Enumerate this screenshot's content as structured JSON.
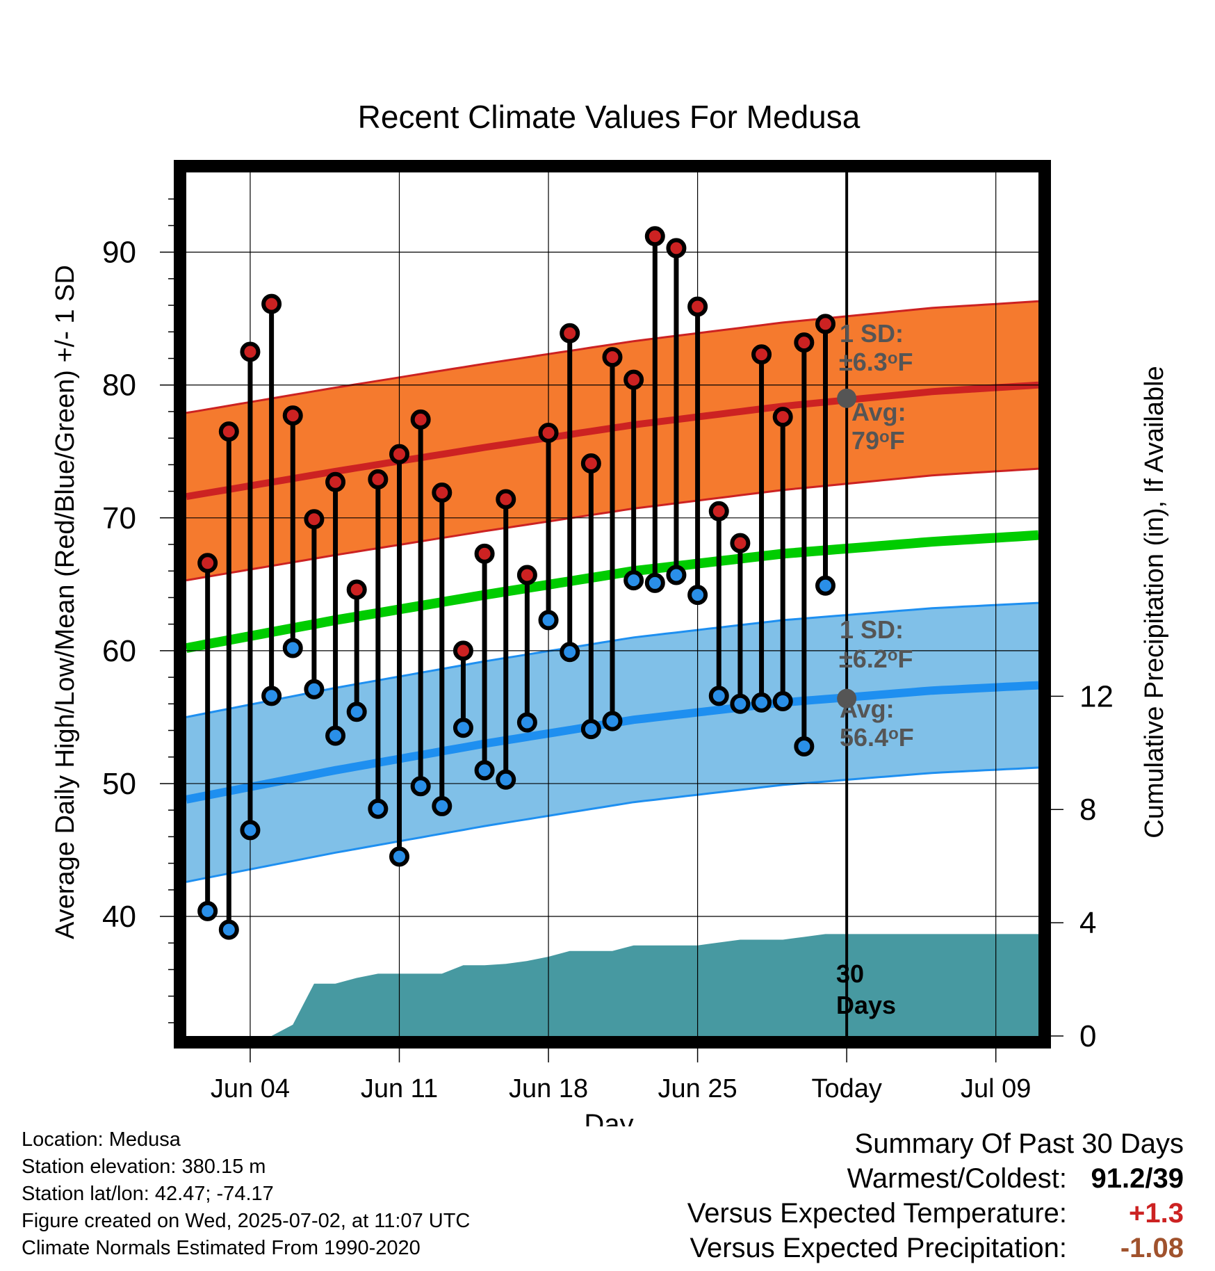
{
  "chart_data": {
    "type": "line",
    "title": "Recent Climate Values For Medusa",
    "xlabel": "Day",
    "ylabel": "Average Daily High/Low/Mean (Red/Blue/Green) +/- 1 SD",
    "y2label": "Cumulative Precipitation (in), If Available",
    "x_ticks": [
      "Jun 04",
      "Jun 11",
      "Jun 18",
      "Jun 25",
      "Today",
      "Jul 09"
    ],
    "x_tick_dates": [
      "2025-06-04",
      "2025-06-11",
      "2025-06-18",
      "2025-06-25",
      "2025-07-02",
      "2025-07-09"
    ],
    "x_range": [
      "2025-06-01",
      "2025-07-11"
    ],
    "ylim": [
      31,
      96
    ],
    "y_ticks": [
      40,
      50,
      60,
      70,
      80,
      90
    ],
    "y2lim": [
      0,
      30.5
    ],
    "y2_ticks": [
      0,
      4,
      8,
      12
    ],
    "grid": true,
    "dates": [
      "2025-06-02",
      "2025-06-03",
      "2025-06-04",
      "2025-06-05",
      "2025-06-06",
      "2025-06-07",
      "2025-06-08",
      "2025-06-09",
      "2025-06-10",
      "2025-06-11",
      "2025-06-12",
      "2025-06-13",
      "2025-06-14",
      "2025-06-15",
      "2025-06-16",
      "2025-06-17",
      "2025-06-18",
      "2025-06-19",
      "2025-06-20",
      "2025-06-21",
      "2025-06-22",
      "2025-06-23",
      "2025-06-24",
      "2025-06-25",
      "2025-06-26",
      "2025-06-27",
      "2025-06-28",
      "2025-06-29",
      "2025-06-30",
      "2025-07-01"
    ],
    "series": [
      {
        "name": "High",
        "color": "#cc2222",
        "values": [
          66.6,
          76.5,
          82.5,
          86.1,
          77.7,
          69.9,
          72.7,
          64.6,
          72.9,
          74.8,
          77.4,
          71.9,
          60.0,
          67.3,
          71.4,
          65.7,
          76.4,
          83.9,
          74.1,
          82.1,
          80.4,
          91.2,
          90.3,
          85.9,
          70.5,
          68.1,
          82.3,
          77.6,
          83.2,
          84.6
        ]
      },
      {
        "name": "Low",
        "color": "#2a8fe8",
        "values": [
          40.4,
          39.0,
          46.5,
          56.6,
          60.2,
          57.1,
          53.6,
          55.4,
          48.1,
          44.5,
          49.8,
          48.3,
          54.2,
          51.0,
          50.3,
          54.6,
          62.3,
          59.9,
          54.1,
          54.7,
          65.3,
          65.1,
          65.7,
          64.2,
          56.6,
          56.0,
          56.1,
          56.2,
          52.8,
          64.9
        ]
      }
    ],
    "normals": {
      "dates": [
        "2025-06-01",
        "2025-06-08",
        "2025-06-15",
        "2025-06-22",
        "2025-06-29",
        "2025-07-06",
        "2025-07-11"
      ],
      "high_avg": [
        71.6,
        73.5,
        75.3,
        77.0,
        78.4,
        79.5,
        80.0
      ],
      "high_sd": 6.3,
      "low_avg": [
        48.8,
        51.0,
        53.0,
        54.8,
        56.1,
        57.0,
        57.4
      ],
      "low_sd": 6.2,
      "mean_avg": [
        60.2,
        62.3,
        64.2,
        66.0,
        67.3,
        68.2,
        68.7
      ]
    },
    "precipitation": {
      "dates": [
        "2025-06-01",
        "2025-06-05",
        "2025-06-06",
        "2025-06-07",
        "2025-06-08",
        "2025-06-09",
        "2025-06-10",
        "2025-06-11",
        "2025-06-13",
        "2025-06-14",
        "2025-06-15",
        "2025-06-16",
        "2025-06-17",
        "2025-06-18",
        "2025-06-19",
        "2025-06-20",
        "2025-06-21",
        "2025-06-22",
        "2025-06-24",
        "2025-06-25",
        "2025-06-27",
        "2025-06-28",
        "2025-06-29",
        "2025-06-30",
        "2025-07-01",
        "2025-07-11"
      ],
      "values": [
        0,
        0,
        0.4,
        1.85,
        1.85,
        2.05,
        2.2,
        2.2,
        2.2,
        2.5,
        2.5,
        2.55,
        2.65,
        2.8,
        3.0,
        3.0,
        3.0,
        3.2,
        3.2,
        3.2,
        3.4,
        3.4,
        3.4,
        3.5,
        3.6,
        3.6
      ]
    },
    "annotations": [
      {
        "text": "1 SD:",
        "color": "#555555"
      },
      {
        "text": "±6.3°F",
        "color": "#555555"
      },
      {
        "text": "Avg:",
        "color": "#555555"
      },
      {
        "text": "79°F",
        "color": "#555555"
      },
      {
        "text": "1 SD:",
        "color": "#555555"
      },
      {
        "text": "±6.2°F",
        "color": "#555555"
      },
      {
        "text": "Avg:",
        "color": "#555555"
      },
      {
        "text": "56.4°F",
        "color": "#555555"
      },
      {
        "text": "30",
        "color": "#000000"
      },
      {
        "text": "Days",
        "color": "#000000"
      }
    ],
    "today_markers": {
      "date": "2025-07-02",
      "high_avg": 79,
      "low_avg": 56.4
    },
    "colors": {
      "high_band": "#f57a2e",
      "high_line": "#cc2222",
      "low_band": "#80c0e8",
      "low_line": "#1e8ff0",
      "mean_line": "#00cc00",
      "precip_fill": "#4799a1",
      "marker_high": "#cc2222",
      "marker_low": "#2a8fe8",
      "today_dot": "#555555"
    }
  },
  "info": {
    "location": "Location: Medusa",
    "elevation": "Station elevation: 380.15 m",
    "latlon": "Station lat/lon: 42.47; -74.17",
    "created": "Figure created on Wed, 2025-07-02, at 11:07 UTC",
    "normals": "Climate Normals Estimated From 1990-2020"
  },
  "summary": {
    "title": "Summary Of Past 30 Days",
    "warm_cold_label": "Warmest/Coldest:",
    "warm_cold_value": "91.2/39",
    "temp_label": "Versus Expected Temperature:",
    "temp_value": "+1.3",
    "temp_color": "#cc2222",
    "precip_label": "Versus Expected Precipitation:",
    "precip_value": "-1.08",
    "precip_color": "#a0522d"
  }
}
